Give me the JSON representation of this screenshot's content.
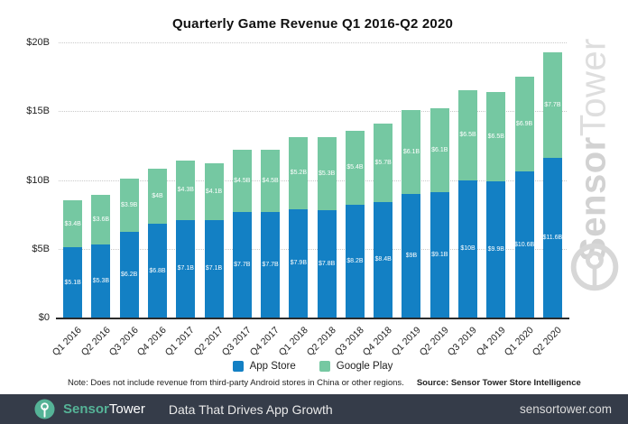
{
  "title": "Quarterly Game Revenue Q1 2016-Q2 2020",
  "chart_data": {
    "type": "bar",
    "stacked": true,
    "categories": [
      "Q1 2016",
      "Q2 2016",
      "Q3 2016",
      "Q4 2016",
      "Q1 2017",
      "Q2 2017",
      "Q3 2017",
      "Q4 2017",
      "Q1 2018",
      "Q2 2018",
      "Q3 2018",
      "Q4 2018",
      "Q1 2019",
      "Q2 2019",
      "Q3 2019",
      "Q4 2019",
      "Q1 2020",
      "Q2 2020"
    ],
    "series": [
      {
        "name": "App Store",
        "color": "#1380c4",
        "values": [
          5.1,
          5.3,
          6.2,
          6.8,
          7.1,
          7.1,
          7.7,
          7.7,
          7.9,
          7.8,
          8.2,
          8.4,
          9.0,
          9.1,
          10.0,
          9.9,
          10.6,
          11.6
        ],
        "labels": [
          "$5.1B",
          "$5.3B",
          "$6.2B",
          "$6.8B",
          "$7.1B",
          "$7.1B",
          "$7.7B",
          "$7.7B",
          "$7.9B",
          "$7.8B",
          "$8.2B",
          "$8.4B",
          "$9B",
          "$9.1B",
          "$10B",
          "$9.9B",
          "$10.6B",
          "$11.6B"
        ]
      },
      {
        "name": "Google Play",
        "color": "#75c8a2",
        "values": [
          3.4,
          3.6,
          3.9,
          4.0,
          4.3,
          4.1,
          4.5,
          4.5,
          5.2,
          5.3,
          5.4,
          5.7,
          6.1,
          6.1,
          6.5,
          6.5,
          6.9,
          7.7
        ],
        "labels": [
          "$3.4B",
          "$3.6B",
          "$3.9B",
          "$4B",
          "$4.3B",
          "$4.1B",
          "$4.5B",
          "$4.5B",
          "$5.2B",
          "$5.3B",
          "$5.4B",
          "$5.7B",
          "$6.1B",
          "$6.1B",
          "$6.5B",
          "$6.5B",
          "$6.9B",
          "$7.7B"
        ]
      }
    ],
    "title": "Quarterly Game Revenue Q1 2016-Q2 2020",
    "xlabel": "",
    "ylabel": "",
    "ylim": [
      0,
      20
    ],
    "yticks": [
      {
        "value": 0,
        "label": "$0"
      },
      {
        "value": 5,
        "label": "$5B"
      },
      {
        "value": 10,
        "label": "$10B"
      },
      {
        "value": 15,
        "label": "$15B"
      },
      {
        "value": 20,
        "label": "$20B"
      }
    ],
    "grid": "horizontal-dotted",
    "legend_position": "bottom"
  },
  "legend": {
    "items": [
      {
        "label": "App Store",
        "color": "#1380c4"
      },
      {
        "label": "Google Play",
        "color": "#75c8a2"
      }
    ]
  },
  "note": {
    "text": "Note: Does not include revenue from third-party Android stores in China or other regions.",
    "source": "Source: Sensor Tower Store Intelligence"
  },
  "watermark": {
    "brand_first": "Sensor",
    "brand_second": "Tower"
  },
  "footer": {
    "brand_first": "Sensor",
    "brand_second": "Tower",
    "tagline": "Data That Drives App Growth",
    "website": "sensortower.com",
    "bg_color": "#353c49",
    "accent_color": "#55b397"
  },
  "colors": {
    "app_store_blue": "#1380c4",
    "google_play_green": "#75c8a2",
    "watermark_gray": "#d7d7d7",
    "gridline": "#c9c9c9",
    "axis": "#2b2b2b"
  }
}
